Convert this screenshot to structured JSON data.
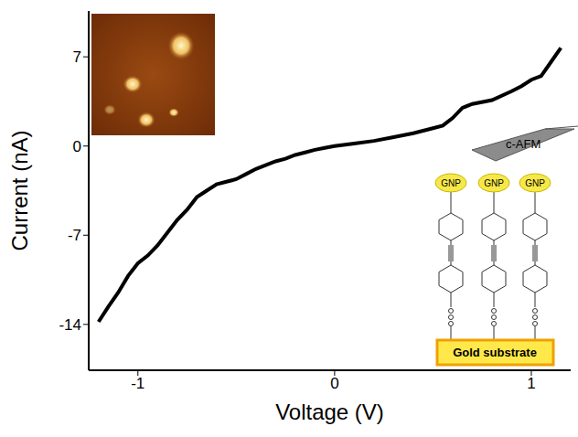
{
  "chart_data": {
    "type": "line",
    "x_label": "Voltage (V)",
    "y_label": "Current (nA)",
    "x": [
      -1.2,
      -1.15,
      -1.1,
      -1.05,
      -1.0,
      -0.95,
      -0.9,
      -0.85,
      -0.8,
      -0.75,
      -0.7,
      -0.65,
      -0.6,
      -0.55,
      -0.5,
      -0.45,
      -0.4,
      -0.35,
      -0.3,
      -0.25,
      -0.2,
      -0.15,
      -0.1,
      -0.05,
      0,
      0.1,
      0.2,
      0.3,
      0.4,
      0.5,
      0.55,
      0.6,
      0.65,
      0.7,
      0.8,
      0.9,
      0.95,
      1.0,
      1.05,
      1.1,
      1.15
    ],
    "values": [
      -13.8,
      -12.6,
      -11.5,
      -10.2,
      -9.2,
      -8.6,
      -7.8,
      -6.8,
      -5.8,
      -5.0,
      -4.0,
      -3.5,
      -3.0,
      -2.8,
      -2.6,
      -2.2,
      -1.8,
      -1.5,
      -1.2,
      -1.0,
      -0.7,
      -0.5,
      -0.3,
      -0.15,
      0,
      0.2,
      0.4,
      0.7,
      1.0,
      1.4,
      1.6,
      2.2,
      3.0,
      3.3,
      3.6,
      4.3,
      4.7,
      5.2,
      5.5,
      6.6,
      7.7
    ],
    "color": "#000000",
    "xlim": [
      -1.25,
      1.2
    ],
    "xticks": [
      -1,
      0,
      1
    ],
    "ylim": [
      -17.6,
      10.6
    ],
    "yticks": [
      -14,
      -7,
      0,
      7
    ],
    "grid": false,
    "annotations": {
      "probe": "c-AFM",
      "nanoparticles": [
        "GNP",
        "GNP",
        "GNP"
      ],
      "substrate": "Gold substrate"
    }
  }
}
